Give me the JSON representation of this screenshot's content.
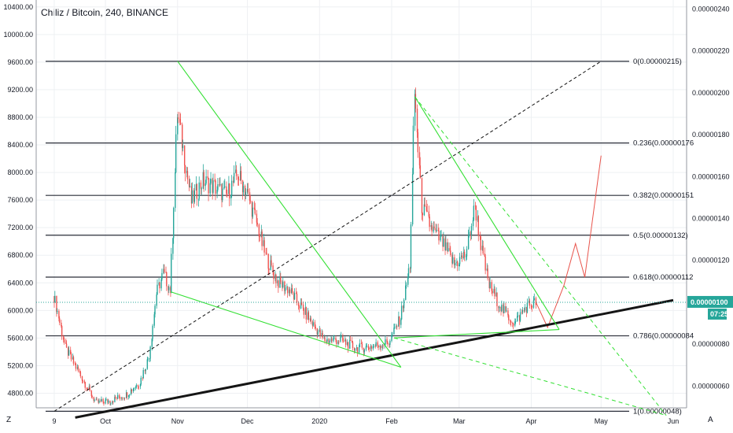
{
  "header": {
    "title": "Chiliz / Bitcoin, 240, BINANCE"
  },
  "corners": {
    "left": "Z",
    "right": "A"
  },
  "colors": {
    "fib_line": "#2a2e39",
    "green_line": "#34e034",
    "trend_line": "#151515",
    "projection": "#e8544c",
    "candle_up": "#26a69a",
    "candle_down": "#ef5350",
    "current_price_bg": "#26a69a",
    "grid": "#eef0f3"
  },
  "current_price": {
    "value": "0.00000100",
    "countdown": "07:25"
  },
  "chart_data": {
    "type": "line",
    "title": "Chiliz / Bitcoin, 240, BINANCE",
    "xlabel": "",
    "ylabel": "",
    "x_ticks": [
      "9",
      "Oct",
      "Nov",
      "Dec",
      "2020",
      "Feb",
      "Mar",
      "Apr",
      "May",
      "Jun"
    ],
    "y_left": {
      "ticks": [
        "4800.00",
        "5200.00",
        "5600.00",
        "6000.00",
        "6400.00",
        "6800.00",
        "7200.00",
        "7600.00",
        "8000.00",
        "8400.00",
        "8800.00",
        "9200.00",
        "9600.00",
        "10000.00",
        "10400.00"
      ],
      "ylim": [
        4680,
        10500
      ]
    },
    "y_right": {
      "ticks": [
        "0.00000060",
        "0.00000080",
        "0.00000100",
        "0.00000120",
        "0.00000140",
        "0.00000160",
        "0.00000180",
        "0.00000200",
        "0.00000220",
        "0.00000240"
      ],
      "ylim": [
        4.1e-07,
        2.45e-06
      ]
    },
    "grid": true,
    "fib_levels": [
      {
        "label": "0(0.00000215)",
        "value": 2.15e-06
      },
      {
        "label": "0.236(0.00000176",
        "value": 1.76e-06
      },
      {
        "label": "0.382(0.00000151",
        "value": 1.51e-06
      },
      {
        "label": "0.5(0.00000132)",
        "value": 1.32e-06
      },
      {
        "label": "0.618(0.00000112",
        "value": 1.12e-06
      },
      {
        "label": "0.786(0.00000084",
        "value": 8.4e-07
      },
      {
        "label": "1(0.00000048)",
        "value": 4.8e-07
      }
    ],
    "series": [
      {
        "values": [
          [
            "2019-09-09",
            1.03e-06
          ],
          [
            "2019-09-14",
            7.8e-07
          ],
          [
            "2019-09-19",
            6.8e-07
          ],
          [
            "2019-09-23",
            6e-07
          ],
          [
            "2019-09-27",
            5.2e-07
          ],
          [
            "2019-10-03",
            5.3e-07
          ],
          [
            "2019-10-10",
            5.6e-07
          ],
          [
            "2019-10-16",
            6.2e-07
          ],
          [
            "2019-10-20",
            7.5e-07
          ],
          [
            "2019-10-23",
            1.04e-06
          ],
          [
            "2019-10-26",
            1.14e-06
          ],
          [
            "2019-10-29",
            1.06e-06
          ],
          [
            "2019-11-01",
            1.9e-06
          ],
          [
            "2019-11-04",
            1.7e-06
          ],
          [
            "2019-11-07",
            1.48e-06
          ],
          [
            "2019-11-12",
            1.58e-06
          ],
          [
            "2019-11-17",
            1.55e-06
          ],
          [
            "2019-11-22",
            1.51e-06
          ],
          [
            "2019-11-27",
            1.61e-06
          ],
          [
            "2019-12-01",
            1.52e-06
          ],
          [
            "2019-12-05",
            1.38e-06
          ],
          [
            "2019-12-09",
            1.22e-06
          ],
          [
            "2019-12-14",
            1.1e-06
          ],
          [
            "2019-12-19",
            1.06e-06
          ],
          [
            "2019-12-24",
            9.8e-07
          ],
          [
            "2019-12-29",
            9e-07
          ],
          [
            "2020-01-03",
            8.2e-07
          ],
          [
            "2020-01-10",
            8.2e-07
          ],
          [
            "2020-01-17",
            7.8e-07
          ],
          [
            "2020-01-24",
            7.9e-07
          ],
          [
            "2020-01-31",
            8.1e-07
          ],
          [
            "2020-02-05",
            9.3e-07
          ],
          [
            "2020-02-09",
            1.18e-06
          ],
          [
            "2020-02-11",
            2e-06
          ],
          [
            "2020-02-14",
            1.46e-06
          ],
          [
            "2020-02-18",
            1.36e-06
          ],
          [
            "2020-02-23",
            1.28e-06
          ],
          [
            "2020-02-28",
            1.18e-06
          ],
          [
            "2020-03-04",
            1.23e-06
          ],
          [
            "2020-03-08",
            1.46e-06
          ],
          [
            "2020-03-11",
            1.24e-06
          ],
          [
            "2020-03-14",
            1.08e-06
          ],
          [
            "2020-03-20",
            9.6e-07
          ],
          [
            "2020-03-25",
            9e-07
          ],
          [
            "2020-03-30",
            9.8e-07
          ],
          [
            "2020-04-03",
            1e-06
          ]
        ]
      },
      {
        "name": "",
        "values": [
          [
            "2020-04-03",
            1e-06
          ],
          [
            "2020-04-08",
            8.8e-07
          ],
          [
            "2020-04-15",
            1.08e-06
          ],
          [
            "2020-04-20",
            1.28e-06
          ],
          [
            "2020-04-24",
            1.12e-06
          ],
          [
            "2020-05-01",
            1.7e-06
          ]
        ]
      }
    ]
  }
}
